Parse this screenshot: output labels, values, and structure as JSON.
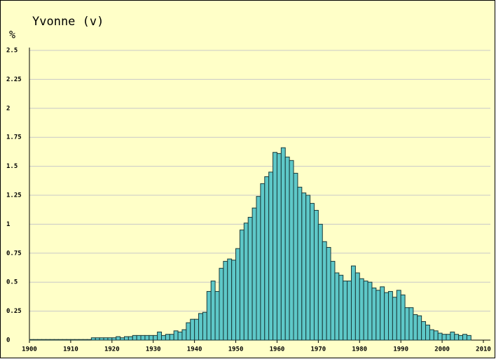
{
  "chart_data": {
    "type": "bar",
    "title": "Yvonne (v)",
    "y_label": "%",
    "x": [
      1900,
      1901,
      1902,
      1903,
      1904,
      1905,
      1906,
      1907,
      1908,
      1909,
      1910,
      1911,
      1912,
      1913,
      1914,
      1915,
      1916,
      1917,
      1918,
      1919,
      1920,
      1921,
      1922,
      1923,
      1924,
      1925,
      1926,
      1927,
      1928,
      1929,
      1930,
      1931,
      1932,
      1933,
      1934,
      1935,
      1936,
      1937,
      1938,
      1939,
      1940,
      1941,
      1942,
      1943,
      1944,
      1945,
      1946,
      1947,
      1948,
      1949,
      1950,
      1951,
      1952,
      1953,
      1954,
      1955,
      1956,
      1957,
      1958,
      1959,
      1960,
      1961,
      1962,
      1963,
      1964,
      1965,
      1966,
      1967,
      1968,
      1969,
      1970,
      1971,
      1972,
      1973,
      1974,
      1975,
      1976,
      1977,
      1978,
      1979,
      1980,
      1981,
      1982,
      1983,
      1984,
      1985,
      1986,
      1987,
      1988,
      1989,
      1990,
      1991,
      1992,
      1993,
      1994,
      1995,
      1996,
      1997,
      1998,
      1999,
      2000,
      2001,
      2002,
      2003,
      2004,
      2005,
      2006
    ],
    "values": [
      0.005,
      0.005,
      0.005,
      0.005,
      0.005,
      0.005,
      0.005,
      0.005,
      0.005,
      0.005,
      0.005,
      0.005,
      0.005,
      0.005,
      0.005,
      0.02,
      0.02,
      0.02,
      0.02,
      0.02,
      0.02,
      0.03,
      0.02,
      0.03,
      0.03,
      0.04,
      0.04,
      0.04,
      0.04,
      0.04,
      0.04,
      0.07,
      0.04,
      0.05,
      0.05,
      0.08,
      0.07,
      0.09,
      0.15,
      0.18,
      0.18,
      0.23,
      0.24,
      0.42,
      0.51,
      0.42,
      0.62,
      0.68,
      0.7,
      0.69,
      0.79,
      0.95,
      1.01,
      1.06,
      1.14,
      1.24,
      1.35,
      1.41,
      1.45,
      1.62,
      1.61,
      1.66,
      1.58,
      1.55,
      1.44,
      1.32,
      1.27,
      1.25,
      1.18,
      1.12,
      1.0,
      0.85,
      0.8,
      0.68,
      0.58,
      0.56,
      0.51,
      0.51,
      0.64,
      0.58,
      0.53,
      0.51,
      0.5,
      0.45,
      0.43,
      0.46,
      0.41,
      0.42,
      0.37,
      0.43,
      0.39,
      0.28,
      0.28,
      0.22,
      0.21,
      0.16,
      0.13,
      0.09,
      0.08,
      0.06,
      0.05,
      0.05,
      0.07,
      0.05,
      0.04,
      0.05,
      0.04
    ],
    "color": "#5ec8c8",
    "xlim": [
      1900,
      2010
    ],
    "xticks": [
      1900,
      1910,
      1920,
      1930,
      1940,
      1950,
      1960,
      1970,
      1980,
      1990,
      2000,
      2010
    ],
    "ylim": [
      0,
      2.5
    ],
    "yticks": [
      0,
      0.25,
      0.5,
      0.75,
      1,
      1.25,
      1.5,
      1.75,
      2,
      2.25,
      2.5
    ],
    "grid": true
  }
}
